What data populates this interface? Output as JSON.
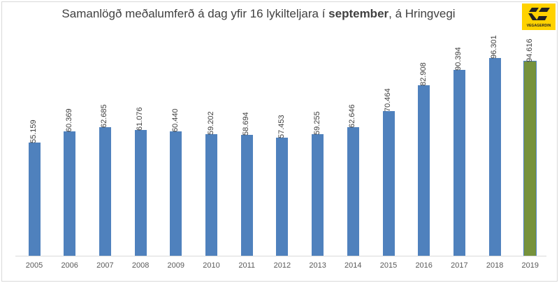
{
  "chart_data": {
    "type": "bar",
    "title_parts": [
      "Samanlögð meðalumferð á dag yfir 16 lykilteljara í ",
      "september",
      ", á Hringvegi"
    ],
    "title": "Samanlögð meðalumferð á dag yfir 16 lykilteljara í september, á Hringvegi",
    "xlabel": "",
    "ylabel": "",
    "ylim": [
      0,
      100000
    ],
    "grid": false,
    "legend": "none",
    "categories": [
      "2005",
      "2006",
      "2007",
      "2008",
      "2009",
      "2010",
      "2011",
      "2012",
      "2013",
      "2014",
      "2015",
      "2016",
      "2017",
      "2018",
      "2019"
    ],
    "values": [
      55159,
      60369,
      62685,
      61076,
      60440,
      59202,
      58694,
      57453,
      59255,
      62646,
      70464,
      82908,
      90394,
      96301,
      94616
    ],
    "value_labels": [
      "55.159",
      "60.369",
      "62.685",
      "61.076",
      "60.440",
      "59.202",
      "58.694",
      "57.453",
      "59.255",
      "62.646",
      "70.464",
      "82.908",
      "90.394",
      "96.301",
      "94.616"
    ],
    "colors": {
      "default_bar": "#4f81bd",
      "highlight_bar": "#76923c",
      "highlight_index": 14
    }
  },
  "logo": {
    "text": "VEGAGERDIN",
    "background": "#ffd200"
  }
}
